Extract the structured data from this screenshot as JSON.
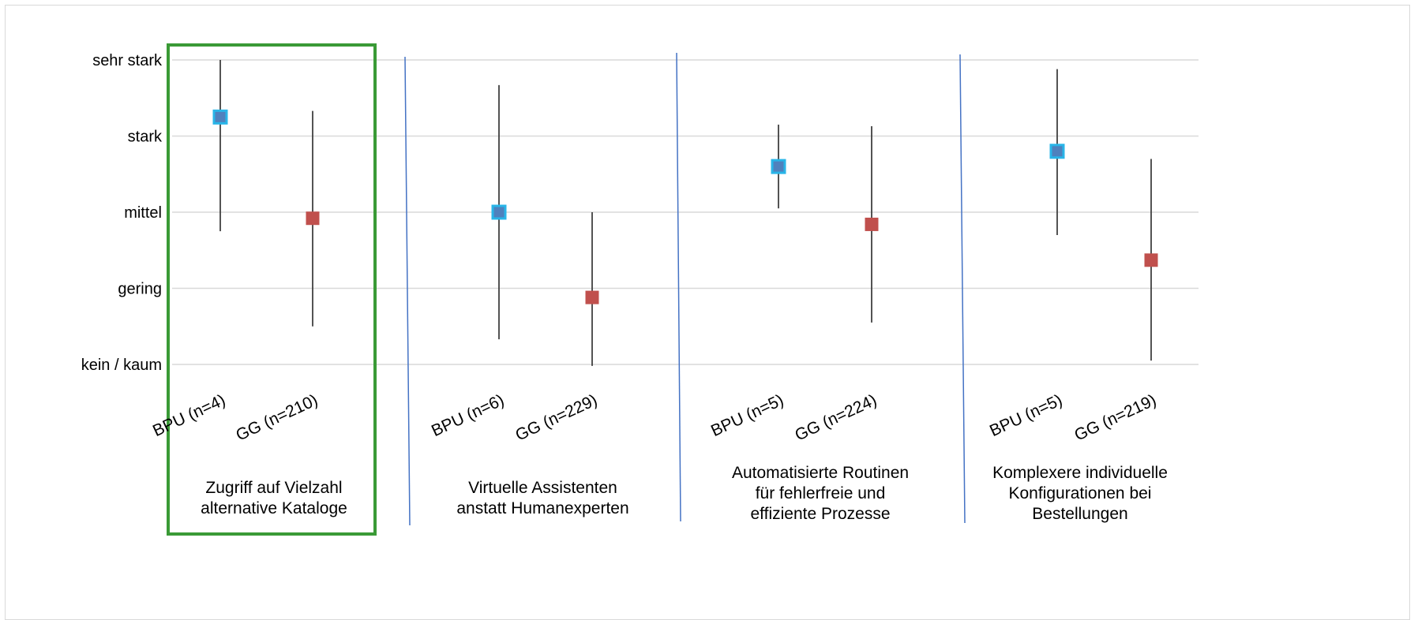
{
  "chart_data": {
    "type": "scatter",
    "title": "",
    "xlabel": "",
    "ylabel": "",
    "y_categories": [
      "kein / kaum",
      "gering",
      "mittel",
      "stark",
      "sehr stark"
    ],
    "ylim": [
      1,
      5
    ],
    "grid": true,
    "series": [
      {
        "name": "",
        "color": "#4f9fd8",
        "marker": "square"
      },
      {
        "name": "",
        "color": "#c0504d",
        "marker": "square"
      }
    ],
    "groups": [
      {
        "label_lines": [
          "Zugriff auf Vielzahl",
          "alternative Kataloge"
        ],
        "highlighted": true,
        "points": [
          {
            "label": "BPU (n=4)",
            "series": 0,
            "mean": 4.25,
            "low": 2.75,
            "high": 5.0
          },
          {
            "label": "GG (n=210)",
            "series": 1,
            "mean": 2.92,
            "low": 1.5,
            "high": 4.33
          }
        ]
      },
      {
        "label_lines": [
          "Virtuelle Assistenten",
          "anstatt Humanexperten"
        ],
        "highlighted": false,
        "points": [
          {
            "label": "BPU (n=6)",
            "series": 0,
            "mean": 3.0,
            "low": 1.33,
            "high": 4.67
          },
          {
            "label": "GG (n=229)",
            "series": 1,
            "mean": 1.88,
            "low": 0.98,
            "high": 3.0
          }
        ]
      },
      {
        "label_lines": [
          "Automatisierte Routinen",
          "für fehlerfreie und",
          "effiziente Prozesse"
        ],
        "highlighted": false,
        "points": [
          {
            "label": "BPU (n=5)",
            "series": 0,
            "mean": 3.6,
            "low": 3.05,
            "high": 4.15
          },
          {
            "label": "GG (n=224)",
            "series": 1,
            "mean": 2.84,
            "low": 1.55,
            "high": 4.13
          }
        ]
      },
      {
        "label_lines": [
          "Komplexere individuelle",
          "Konfigurationen bei",
          "Bestellungen"
        ],
        "highlighted": false,
        "points": [
          {
            "label": "BPU (n=5)",
            "series": 0,
            "mean": 3.8,
            "low": 2.7,
            "high": 4.88
          },
          {
            "label": "GG (n=219)",
            "series": 1,
            "mean": 2.37,
            "low": 1.05,
            "high": 3.7
          }
        ]
      }
    ],
    "highlight_color": "#3a9a36",
    "separator_color": "#4472c4",
    "grid_color": "#d9d9d9",
    "whisker_color": "#404040"
  }
}
